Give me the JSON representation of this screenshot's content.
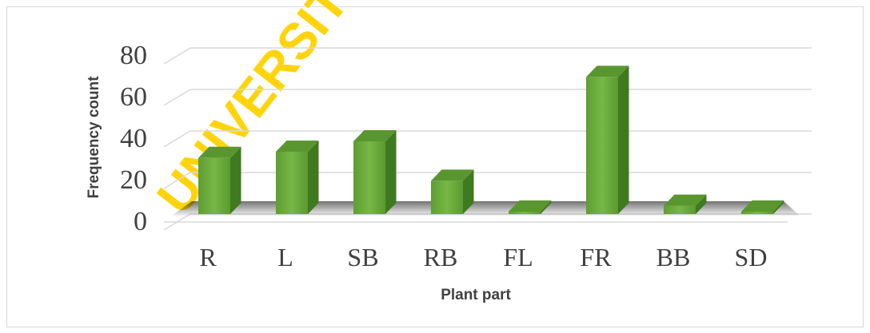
{
  "chart_data": {
    "type": "bar",
    "title": "",
    "xlabel": "Plant part",
    "ylabel": "Frequency count",
    "categories": [
      "R",
      "L",
      "SB",
      "RB",
      "FL",
      "FR",
      "BB",
      "SD"
    ],
    "values": [
      27,
      30,
      35,
      16,
      1,
      66,
      4,
      0
    ],
    "ylim": [
      0,
      80
    ],
    "yticks": [
      "0",
      "20",
      "40",
      "60",
      "80"
    ],
    "grid": true,
    "legend": "none",
    "bar_color": "#6aaa3a",
    "watermark": "UNIVERSITY"
  }
}
